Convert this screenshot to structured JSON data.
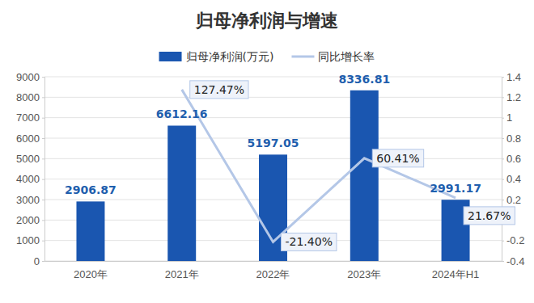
{
  "chart_data": {
    "type": "bar",
    "title": "归母净利润与增速",
    "categories": [
      "2020年",
      "2021年",
      "2022年",
      "2023年",
      "2024年H1"
    ],
    "series": [
      {
        "name": "归母净利润(万元)",
        "type": "bar",
        "color": "#1a56b0",
        "values": [
          2906.87,
          6612.16,
          5197.05,
          8336.81,
          2991.17
        ]
      },
      {
        "name": "同比增长率",
        "type": "line",
        "axis": "y2",
        "color": "#b4c7e7",
        "values": [
          null,
          1.2747,
          -0.214,
          0.6041,
          0.2167
        ],
        "value_labels": [
          null,
          "127.47%",
          "-21.40%",
          "60.41%",
          "21.67%"
        ]
      }
    ],
    "ylim": [
      0,
      9000
    ],
    "yticks": [
      0,
      1000,
      2000,
      3000,
      4000,
      5000,
      6000,
      7000,
      8000,
      9000
    ],
    "y2lim": [
      -0.4,
      1.4
    ],
    "y2ticks": [
      -0.4,
      -0.2,
      0,
      0.2,
      0.4,
      0.6,
      0.8,
      1,
      1.2,
      1.4
    ],
    "grid": true,
    "legend": "top",
    "data_labels": true
  }
}
